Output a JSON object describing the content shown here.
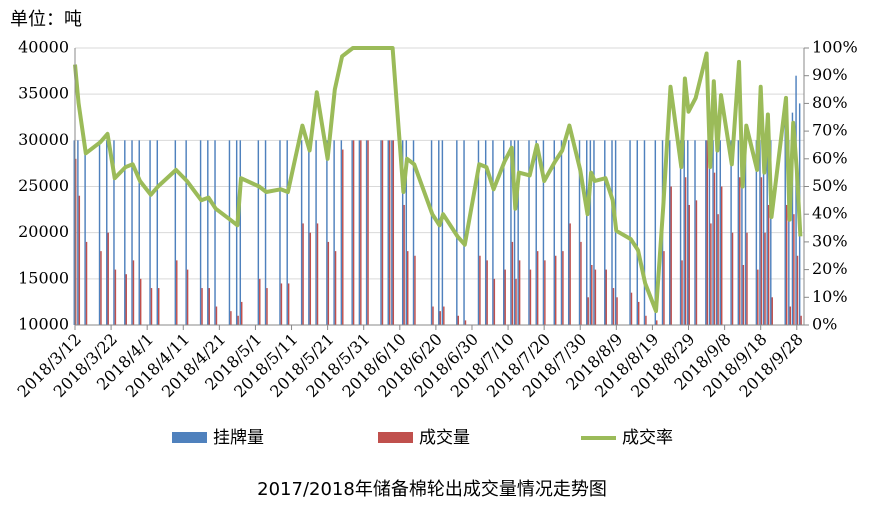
{
  "chart_data": {
    "type": "bar_line",
    "title": "2017/2018年储备棉轮出成交量情况走势图",
    "y_unit_label": "单位：吨",
    "x": [
      "2018/3/12",
      "2018/3/13",
      "2018/3/15",
      "2018/3/19",
      "2018/3/21",
      "2018/3/23",
      "2018/3/26",
      "2018/3/28",
      "2018/3/30",
      "2018/4/2",
      "2018/4/4",
      "2018/4/9",
      "2018/4/12",
      "2018/4/16",
      "2018/4/18",
      "2018/4/20",
      "2018/4/24",
      "2018/4/26",
      "2018/4/27",
      "2018/5/2",
      "2018/5/4",
      "2018/5/8",
      "2018/5/10",
      "2018/5/14",
      "2018/5/16",
      "2018/5/18",
      "2018/5/21",
      "2018/5/23",
      "2018/5/25",
      "2018/5/28",
      "2018/5/30",
      "2018/6/1",
      "2018/6/5",
      "2018/6/7",
      "2018/6/8",
      "2018/6/11",
      "2018/6/12",
      "2018/6/14",
      "2018/6/19",
      "2018/6/21",
      "2018/6/22",
      "2018/6/26",
      "2018/6/28",
      "2018/7/2",
      "2018/7/4",
      "2018/7/6",
      "2018/7/9",
      "2018/7/11",
      "2018/7/12",
      "2018/7/13",
      "2018/7/16",
      "2018/7/18",
      "2018/7/20",
      "2018/7/23",
      "2018/7/25",
      "2018/7/27",
      "2018/7/30",
      "2018/8/1",
      "2018/8/2",
      "2018/8/3",
      "2018/8/6",
      "2018/8/8",
      "2018/8/9",
      "2018/8/13",
      "2018/8/15",
      "2018/8/17",
      "2018/8/20",
      "2018/8/22",
      "2018/8/24",
      "2018/8/27",
      "2018/8/28",
      "2018/8/29",
      "2018/8/31",
      "2018/9/3",
      "2018/9/4",
      "2018/9/5",
      "2018/9/6",
      "2018/9/7",
      "2018/9/10",
      "2018/9/12",
      "2018/9/13",
      "2018/9/14",
      "2018/9/17",
      "2018/9/18",
      "2018/9/19",
      "2018/9/20",
      "2018/9/21",
      "2018/9/25",
      "2018/9/26",
      "2018/9/27",
      "2018/9/28",
      "2018/9/29"
    ],
    "series": [
      {
        "name": "挂牌量",
        "color": "#4f81bd",
        "axis": "y",
        "kind": "bar",
        "values": [
          30000,
          30000,
          30000,
          30000,
          30000,
          30000,
          30000,
          30000,
          30000,
          30000,
          30000,
          30000,
          30000,
          30000,
          30000,
          30000,
          30000,
          30000,
          30000,
          30000,
          30000,
          30000,
          30000,
          30000,
          30000,
          30000,
          30000,
          30000,
          30000,
          30000,
          30000,
          30000,
          30000,
          30000,
          30000,
          30000,
          30000,
          30000,
          30000,
          30000,
          30000,
          30000,
          30000,
          30000,
          30000,
          30000,
          30000,
          30000,
          30000,
          30000,
          30000,
          30000,
          30000,
          30000,
          30000,
          30000,
          30000,
          30000,
          30000,
          30000,
          30000,
          30000,
          30000,
          30000,
          30000,
          30000,
          30000,
          30000,
          30000,
          30000,
          30000,
          30000,
          30000,
          30000,
          30000,
          30000,
          30000,
          30000,
          30000,
          30000,
          30000,
          30000,
          30000,
          30000,
          30000,
          30000,
          30000,
          32000,
          30000,
          33000,
          37000,
          34000
        ]
      },
      {
        "name": "成交量",
        "color": "#c0504d",
        "axis": "y",
        "kind": "bar",
        "values": [
          28000,
          24000,
          19000,
          18000,
          20000,
          16000,
          15500,
          17000,
          15000,
          14000,
          14000,
          17000,
          16000,
          14000,
          14000,
          12000,
          11500,
          11000,
          12500,
          15000,
          14000,
          14500,
          14500,
          21000,
          20000,
          21000,
          19000,
          18000,
          29000,
          30000,
          30000,
          30000,
          30000,
          30000,
          30000,
          23000,
          18000,
          17500,
          12000,
          11500,
          12000,
          11000,
          10500,
          17500,
          17000,
          15000,
          16000,
          19000,
          15000,
          17000,
          16000,
          18000,
          17000,
          17500,
          18000,
          21000,
          19000,
          13000,
          16500,
          16000,
          16000,
          14000,
          13000,
          13500,
          12500,
          11000,
          10500,
          18000,
          25000,
          17000,
          26000,
          23000,
          23500,
          30000,
          21000,
          26500,
          22000,
          25000,
          20000,
          26000,
          16500,
          20000,
          16000,
          26000,
          20000,
          23000,
          13000,
          23000,
          12000,
          22000,
          17500,
          11000
        ]
      },
      {
        "name": "成交率",
        "color": "#9bbb59",
        "axis": "y2",
        "kind": "line",
        "values": [
          94,
          80,
          62,
          66,
          69,
          53,
          57,
          58,
          52,
          47,
          50,
          56,
          52,
          45,
          46,
          42,
          38,
          36,
          53,
          50,
          48,
          49,
          48,
          72,
          63,
          84,
          60,
          85,
          97,
          100,
          100,
          100,
          100,
          100,
          100,
          48,
          60,
          58,
          40,
          36,
          40,
          32,
          29,
          58,
          57,
          49,
          59,
          64,
          42,
          55,
          54,
          65,
          52,
          59,
          63,
          72,
          56,
          40,
          55,
          52,
          53,
          45,
          34,
          31,
          27,
          15,
          5,
          43,
          86,
          57,
          89,
          77,
          82,
          98,
          57,
          88,
          63,
          83,
          58,
          95,
          50,
          72,
          56,
          86,
          55,
          76,
          39,
          82,
          38,
          73,
          56,
          32
        ]
      }
    ],
    "xlim": [
      "2018/3/12",
      "2018/9/30"
    ],
    "xticks": [
      "2018/3/12",
      "2018/3/22",
      "2018/4/1",
      "2018/4/11",
      "2018/4/21",
      "2018/5/1",
      "2018/5/11",
      "2018/5/21",
      "2018/5/31",
      "2018/6/10",
      "2018/6/20",
      "2018/6/30",
      "2018/7/10",
      "2018/7/20",
      "2018/7/30",
      "2018/8/9",
      "2018/8/19",
      "2018/8/29",
      "2018/9/8",
      "2018/9/18",
      "2018/9/28"
    ],
    "ylim": [
      10000,
      40000
    ],
    "yticks": [
      10000,
      15000,
      20000,
      25000,
      30000,
      35000,
      40000
    ],
    "y2lim": [
      0,
      100
    ],
    "y2ticks": [
      {
        "value": 0,
        "label": "0%"
      },
      {
        "value": 10,
        "label": "10%"
      },
      {
        "value": 20,
        "label": "20%"
      },
      {
        "value": 30,
        "label": "30%"
      },
      {
        "value": 40,
        "label": "40%"
      },
      {
        "value": 50,
        "label": "50%"
      },
      {
        "value": 60,
        "label": "60%"
      },
      {
        "value": 70,
        "label": "70%"
      },
      {
        "value": 80,
        "label": "80%"
      },
      {
        "value": 90,
        "label": "90%"
      },
      {
        "value": 100,
        "label": "100%"
      }
    ],
    "grid": true
  }
}
